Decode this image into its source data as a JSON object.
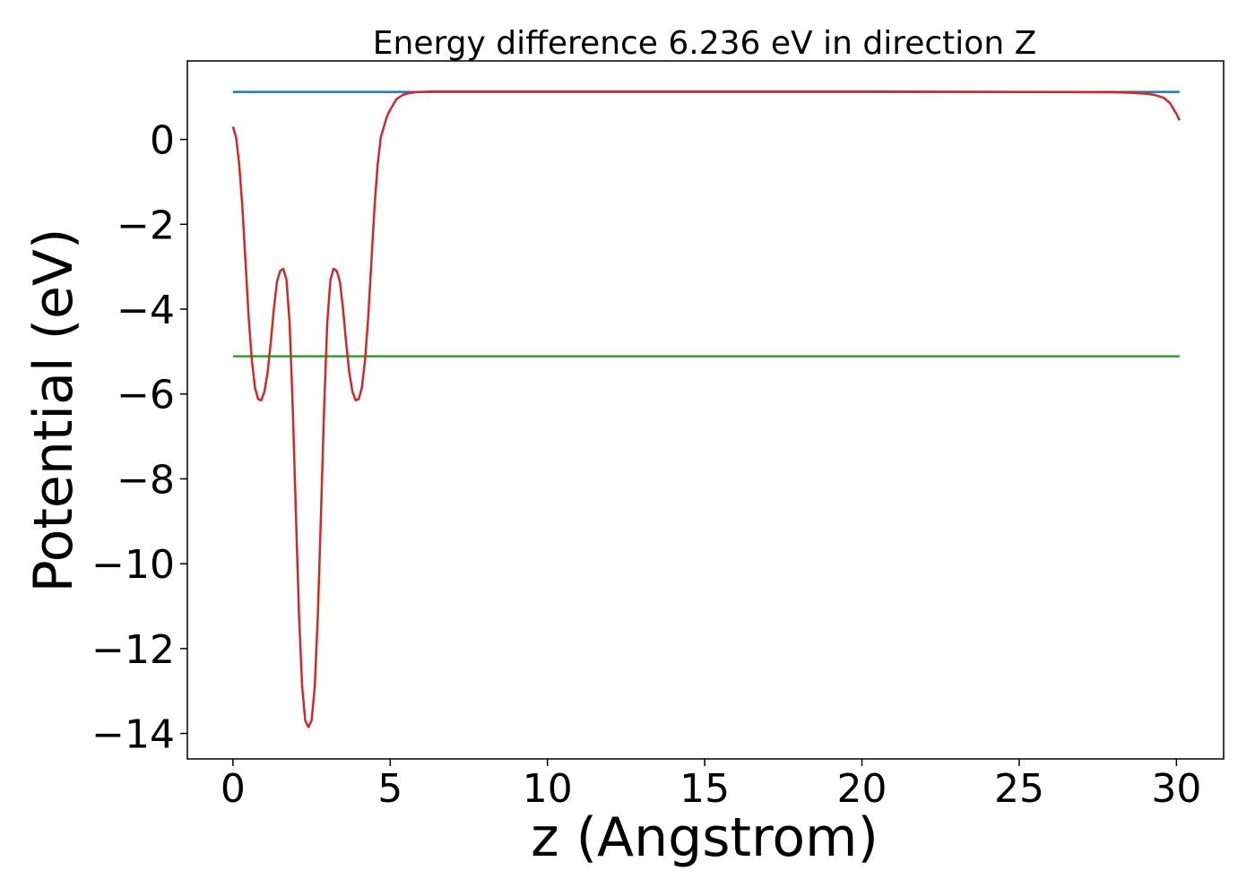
{
  "chart_data": {
    "type": "line",
    "title": "Energy difference 6.236 eV in direction Z",
    "xlabel": "z (Angstrom)",
    "ylabel": "Potential (eV)",
    "xlim": [
      -1.45,
      31.5
    ],
    "ylim": [
      -14.6,
      1.85
    ],
    "xticks": [
      0,
      5,
      10,
      15,
      20,
      25,
      30
    ],
    "yticks": [
      0,
      -2,
      -4,
      -6,
      -8,
      -10,
      -12,
      -14
    ],
    "grid": false,
    "legend": "none",
    "series": [
      {
        "color": "#1f77b4",
        "x": [
          0,
          30.1
        ],
        "y": [
          1.12,
          1.12
        ]
      },
      {
        "color": "#2ca02c",
        "x": [
          0,
          30.1
        ],
        "y": [
          -5.11,
          -5.11
        ]
      },
      {
        "color": "#d62728",
        "x": [
          0,
          0.1,
          0.2,
          0.3,
          0.4,
          0.5,
          0.6,
          0.7,
          0.8,
          0.9,
          1.0,
          1.1,
          1.2,
          1.3,
          1.4,
          1.5,
          1.6,
          1.7,
          1.8,
          1.9,
          2.0,
          2.1,
          2.2,
          2.3,
          2.4,
          2.5,
          2.6,
          2.7,
          2.8,
          2.9,
          3.0,
          3.1,
          3.2,
          3.3,
          3.4,
          3.5,
          3.6,
          3.7,
          3.8,
          3.9,
          4.0,
          4.1,
          4.2,
          4.3,
          4.4,
          4.5,
          4.6,
          4.7,
          4.8,
          4.9,
          5.0,
          5.2,
          5.4,
          5.6,
          5.8,
          6.0,
          6.3,
          6.6,
          7.0,
          8,
          10,
          15,
          20,
          25,
          28,
          28.5,
          29,
          29.3,
          29.6,
          29.8,
          30.0,
          30.1
        ],
        "y": [
          0.3,
          0.05,
          -0.6,
          -1.6,
          -2.9,
          -4.2,
          -5.2,
          -5.85,
          -6.12,
          -6.15,
          -5.95,
          -5.5,
          -4.8,
          -4.0,
          -3.35,
          -3.1,
          -3.05,
          -3.3,
          -4.3,
          -6.3,
          -8.8,
          -11.2,
          -12.9,
          -13.7,
          -13.85,
          -13.7,
          -12.9,
          -11.2,
          -8.8,
          -6.3,
          -4.3,
          -3.3,
          -3.05,
          -3.1,
          -3.35,
          -4.0,
          -4.8,
          -5.5,
          -5.95,
          -6.15,
          -6.12,
          -5.85,
          -5.2,
          -4.2,
          -2.9,
          -1.6,
          -0.6,
          0.05,
          0.3,
          0.55,
          0.7,
          0.95,
          1.05,
          1.09,
          1.11,
          1.12,
          1.13,
          1.13,
          1.13,
          1.13,
          1.13,
          1.13,
          1.13,
          1.12,
          1.11,
          1.1,
          1.08,
          1.05,
          0.98,
          0.85,
          0.6,
          0.45
        ]
      }
    ]
  }
}
